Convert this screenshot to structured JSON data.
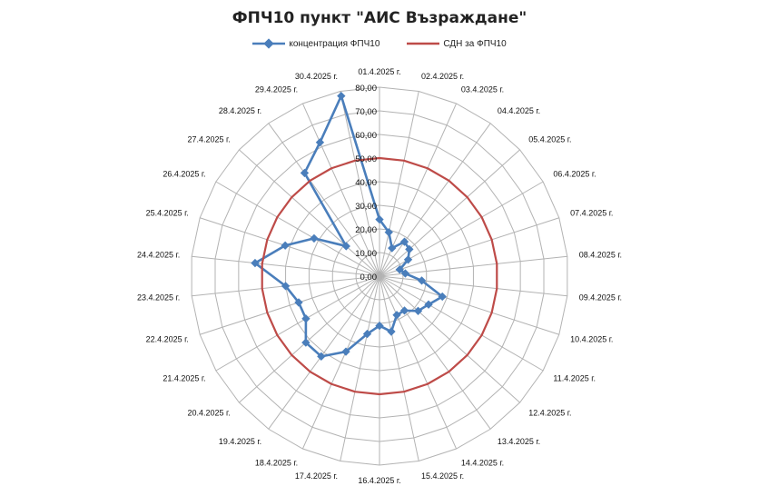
{
  "chart_data": {
    "type": "radar",
    "title": "ФПЧ10 пункт \"АИС Възраждане\"",
    "categories": [
      "01.4.2025 г.",
      "02.4.2025 г.",
      "03.4.2025 г.",
      "04.4.2025 г.",
      "05.4.2025 г.",
      "06.4.2025 г.",
      "07.4.2025 г.",
      "08.4.2025 г.",
      "09.4.2025 г.",
      "10.4.2025 г.",
      "11.4.2025 г.",
      "12.4.2025 г.",
      "13.4.2025 г.",
      "14.4.2025 г.",
      "15.4.2025 г.",
      "16.4.2025 г.",
      "17.4.2025 г.",
      "18.4.2025 г.",
      "19.4.2025 г.",
      "20.4.2025 г.",
      "21.4.2025 г.",
      "22.4.2025 г.",
      "23.4.2025 г.",
      "24.4.2025 г.",
      "25.4.2025 г.",
      "26.4.2025 г.",
      "27.4.2025 г.",
      "28.4.2025 г.",
      "29.4.2025 г.",
      "30.4.2025 г."
    ],
    "ticks": [
      "0,00",
      "10,00",
      "20,00",
      "30,00",
      "40,00",
      "50,00",
      "60,00",
      "70,00",
      "80,00"
    ],
    "rmin": 0,
    "rmax": 80,
    "grid": true,
    "legend_position": "top",
    "series": [
      {
        "name": "концентрация ФПЧ10",
        "color": "#4A7EBB",
        "values": [
          24,
          19,
          13,
          18,
          17,
          14,
          9,
          11,
          18,
          28,
          24,
          22,
          18,
          18,
          24,
          21,
          25,
          35,
          42,
          42,
          36,
          36,
          40,
          53,
          42,
          32,
          19,
          54,
          62,
          78
        ]
      },
      {
        "name": "СДН за ФПЧ10",
        "color": "#BE4B48",
        "values": [
          50,
          50,
          50,
          50,
          50,
          50,
          50,
          50,
          50,
          50,
          50,
          50,
          50,
          50,
          50,
          50,
          50,
          50,
          50,
          50,
          50,
          50,
          50,
          50,
          50,
          50,
          50,
          50,
          50,
          50
        ]
      }
    ]
  }
}
